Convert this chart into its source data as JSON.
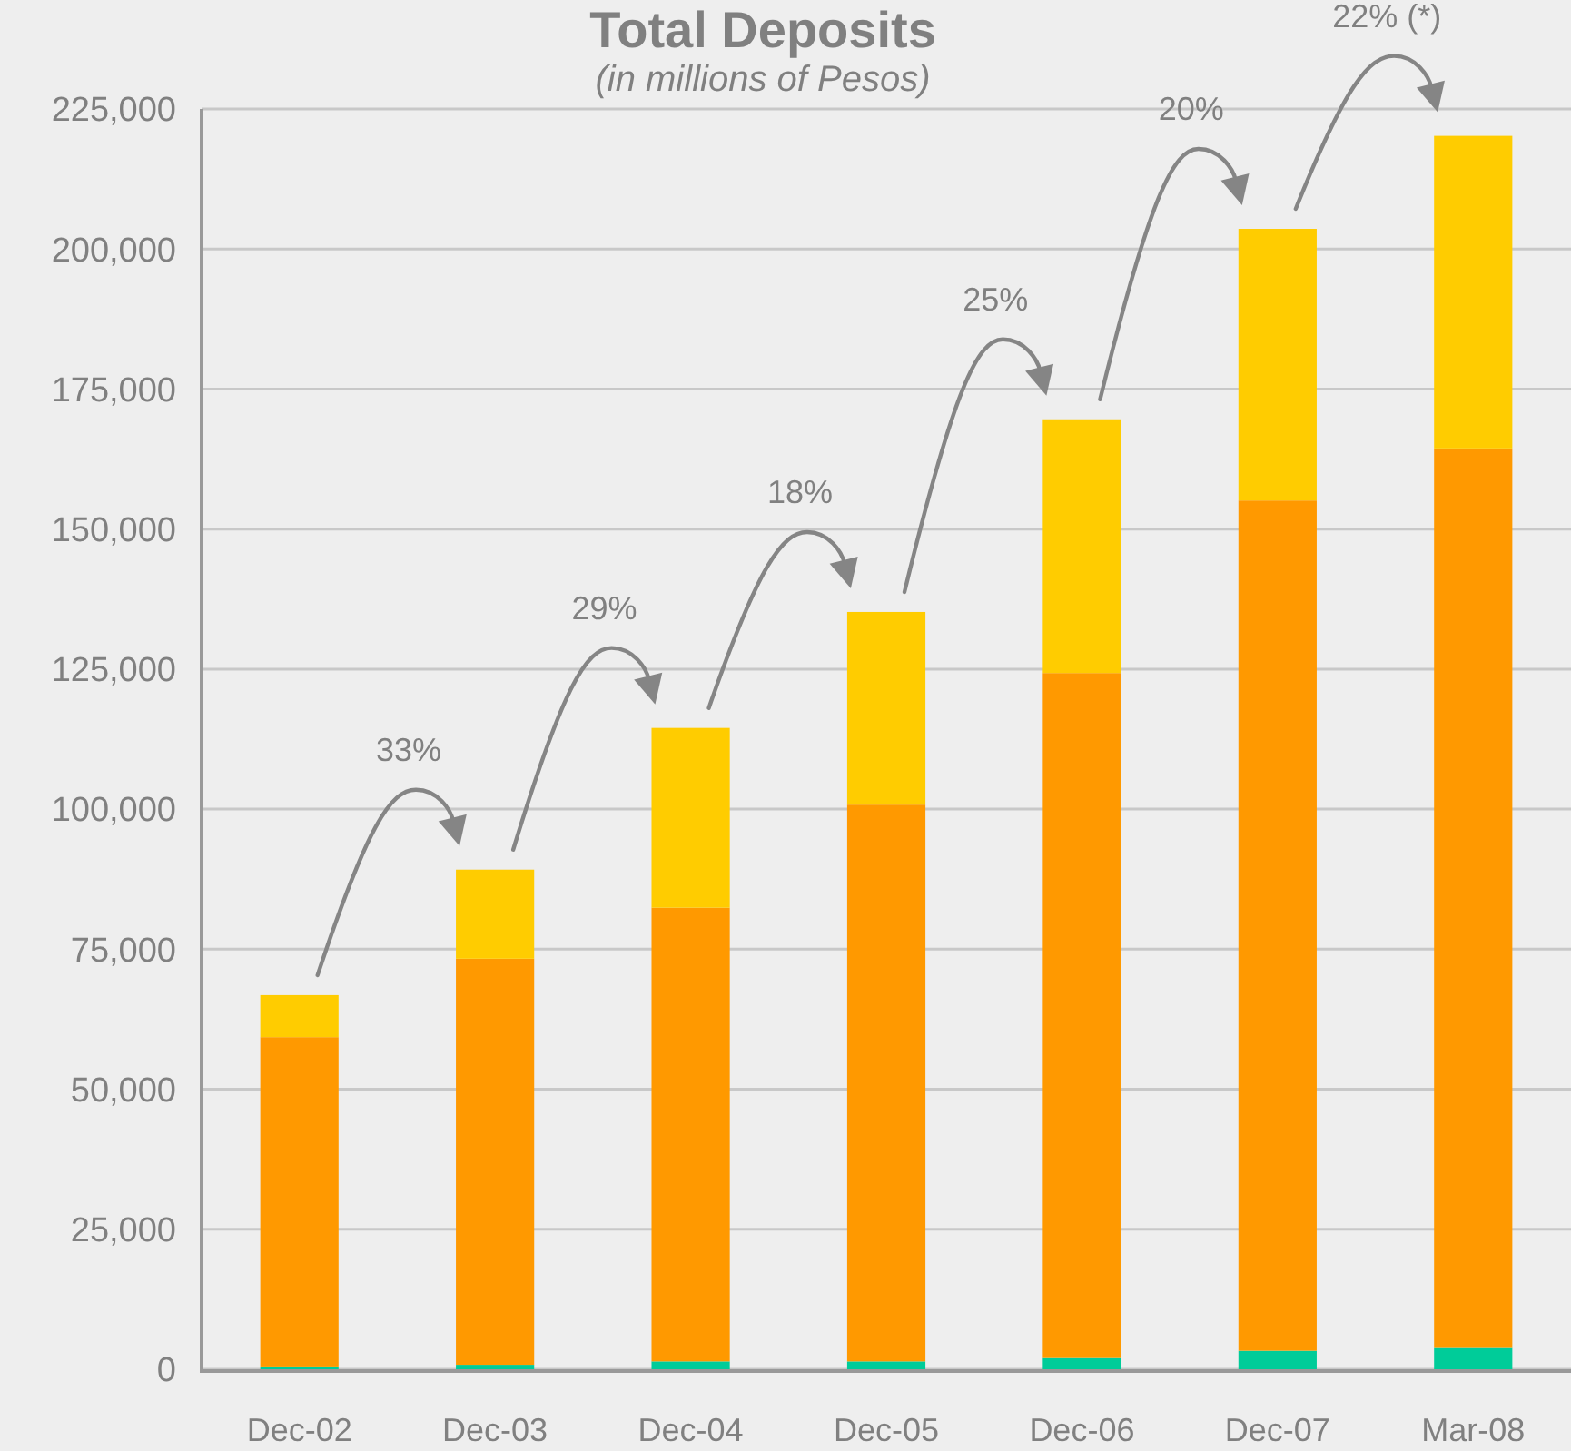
{
  "chart_data": {
    "type": "bar",
    "title": "Total Deposits",
    "subtitle": "(in millions of Pesos)",
    "categories": [
      "Dec-02",
      "Dec-03",
      "Dec-04",
      "Dec-05",
      "Dec-06",
      "Dec-07",
      "Mar-08"
    ],
    "stacked": true,
    "series": [
      {
        "color": "#00cc99",
        "values": [
          500,
          800,
          1400,
          1400,
          2000,
          3300,
          3800
        ]
      },
      {
        "color": "#ff9900",
        "values": [
          58800,
          72500,
          81000,
          99400,
          122300,
          151800,
          160600
        ]
      },
      {
        "color": "#ffcc00",
        "values": [
          7500,
          15900,
          32100,
          34400,
          45300,
          48500,
          55800
        ]
      }
    ],
    "ylim": [
      0,
      225000
    ],
    "yticks": [
      0,
      {
        "value": 25000,
        "label": "25,000"
      },
      {
        "value": 50000,
        "label": "50,000"
      },
      {
        "value": 75000,
        "label": "75,000"
      },
      {
        "value": 100000,
        "label": "100,000"
      },
      {
        "value": 125000,
        "label": "125,000"
      },
      {
        "value": 150000,
        "label": "150,000"
      },
      {
        "value": 175000,
        "label": "175,000"
      },
      {
        "value": 200000,
        "label": "200,000"
      },
      {
        "value": 225000,
        "label": "225,000"
      }
    ],
    "grid": "y",
    "annotations": [
      "33%",
      "29%",
      "18%",
      "25%",
      "20%",
      "22% (*)"
    ]
  }
}
